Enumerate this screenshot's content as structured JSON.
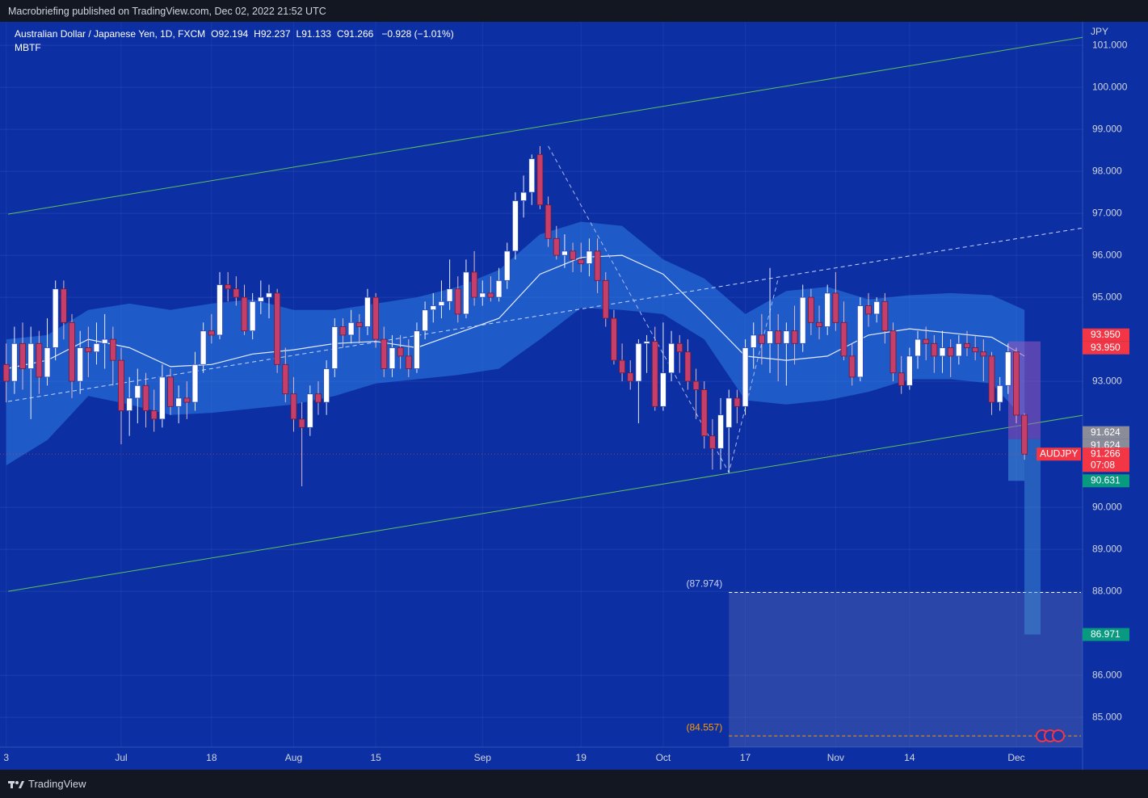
{
  "header": {
    "published": "Macrobriefing published on TradingView.com, Dec 02, 2022 21:52 UTC"
  },
  "footer": {
    "brand": "TradingView"
  },
  "chart_data": {
    "type": "candlestick",
    "symbol_title": "Australian Dollar / Japanese Yen, 1D, FXCM",
    "ohlc_legend": [
      {
        "key": "O",
        "value": "92.194"
      },
      {
        "key": "H",
        "value": "92.237"
      },
      {
        "key": "L",
        "value": "91.133"
      },
      {
        "key": "C",
        "value": "91.266"
      }
    ],
    "change": "−0.928 (−1.01%)",
    "indicator": "MBTF",
    "y_axis_unit": "JPY",
    "symbol": "AUDJPY",
    "countdown": "07:08",
    "up_color": "#ffffff",
    "down_color": "#c53f6a",
    "categories": [
      "3",
      null,
      null,
      null,
      null,
      null,
      null,
      null,
      null,
      null,
      null,
      null,
      null,
      null,
      "Jul",
      null,
      null,
      null,
      null,
      null,
      null,
      null,
      null,
      null,
      null,
      "18",
      null,
      null,
      null,
      null,
      null,
      null,
      null,
      null,
      null,
      "Aug",
      null,
      null,
      null,
      null,
      null,
      null,
      null,
      null,
      null,
      "15",
      null,
      null,
      null,
      null,
      null,
      null,
      null,
      null,
      null,
      null,
      null,
      null,
      "Sep",
      null,
      null,
      null,
      null,
      null,
      null,
      null,
      null,
      null,
      null,
      null,
      "19",
      null,
      null,
      null,
      null,
      null,
      null,
      null,
      null,
      null,
      "Oct",
      null,
      null,
      null,
      null,
      null,
      null,
      null,
      null,
      null,
      "17",
      null,
      null,
      null,
      null,
      null,
      null,
      null,
      null,
      null,
      null,
      "Nov",
      null,
      null,
      null,
      null,
      null,
      null,
      null,
      null,
      "14",
      null,
      null,
      null,
      null,
      null,
      null,
      null,
      null,
      null,
      null,
      null,
      null,
      "Dec",
      null
    ],
    "candles": [
      [
        93.4,
        93.9,
        92.5,
        93.0
      ],
      [
        93.0,
        94.3,
        92.7,
        93.9
      ],
      [
        93.9,
        94.4,
        92.8,
        93.3
      ],
      [
        93.3,
        94.3,
        92.1,
        93.9
      ],
      [
        93.9,
        94.2,
        92.7,
        93.1
      ],
      [
        93.1,
        94.5,
        92.9,
        93.8
      ],
      [
        93.8,
        95.4,
        93.5,
        95.2
      ],
      [
        95.2,
        95.4,
        94.0,
        94.4
      ],
      [
        94.4,
        94.6,
        92.6,
        93.0
      ],
      [
        93.0,
        94.2,
        92.7,
        93.8
      ],
      [
        93.8,
        94.3,
        93.1,
        93.7
      ],
      [
        93.7,
        94.4,
        93.4,
        93.9
      ],
      [
        93.9,
        94.6,
        93.3,
        94.0
      ],
      [
        94.0,
        94.3,
        92.9,
        93.5
      ],
      [
        93.5,
        93.8,
        91.5,
        92.3
      ],
      [
        92.3,
        93.1,
        91.7,
        92.6
      ],
      [
        92.6,
        93.3,
        92.0,
        92.9
      ],
      [
        92.9,
        93.2,
        91.9,
        92.3
      ],
      [
        92.3,
        92.8,
        91.8,
        92.1
      ],
      [
        92.1,
        93.4,
        91.9,
        93.1
      ],
      [
        93.1,
        93.3,
        92.2,
        92.4
      ],
      [
        92.4,
        92.9,
        92.0,
        92.6
      ],
      [
        92.6,
        93.0,
        92.1,
        92.5
      ],
      [
        92.5,
        93.7,
        92.3,
        93.4
      ],
      [
        93.4,
        94.4,
        93.2,
        94.2
      ],
      [
        94.2,
        94.6,
        93.9,
        94.1
      ],
      [
        94.1,
        95.6,
        94.0,
        95.3
      ],
      [
        95.3,
        95.6,
        94.9,
        95.2
      ],
      [
        95.2,
        95.5,
        94.8,
        95.0
      ],
      [
        95.0,
        95.3,
        94.1,
        94.2
      ],
      [
        94.2,
        95.1,
        94.0,
        94.9
      ],
      [
        94.9,
        95.4,
        94.6,
        95.0
      ],
      [
        95.0,
        95.3,
        94.5,
        95.1
      ],
      [
        95.1,
        95.2,
        93.2,
        93.4
      ],
      [
        93.4,
        93.8,
        92.5,
        92.7
      ],
      [
        92.7,
        93.1,
        91.8,
        92.1
      ],
      [
        92.1,
        92.5,
        90.5,
        91.9
      ],
      [
        91.9,
        92.9,
        91.7,
        92.7
      ],
      [
        92.7,
        93.0,
        92.2,
        92.5
      ],
      [
        92.5,
        93.5,
        92.2,
        93.3
      ],
      [
        93.3,
        94.5,
        93.1,
        94.3
      ],
      [
        94.3,
        94.5,
        93.8,
        94.1
      ],
      [
        94.1,
        94.7,
        93.9,
        94.4
      ],
      [
        94.4,
        94.6,
        93.9,
        94.3
      ],
      [
        94.3,
        95.2,
        94.1,
        95.0
      ],
      [
        95.0,
        95.1,
        93.8,
        94.0
      ],
      [
        94.0,
        94.3,
        93.1,
        93.3
      ],
      [
        93.3,
        94.1,
        93.1,
        93.8
      ],
      [
        93.8,
        94.1,
        93.3,
        93.6
      ],
      [
        93.6,
        94.0,
        93.1,
        93.3
      ],
      [
        93.3,
        94.4,
        93.2,
        94.2
      ],
      [
        94.2,
        94.9,
        94.0,
        94.7
      ],
      [
        94.7,
        95.1,
        94.4,
        94.8
      ],
      [
        94.8,
        95.4,
        94.5,
        94.9
      ],
      [
        94.9,
        95.9,
        94.7,
        95.2
      ],
      [
        95.2,
        95.5,
        94.4,
        94.6
      ],
      [
        94.6,
        95.9,
        94.5,
        95.6
      ],
      [
        95.6,
        96.1,
        94.8,
        95.0
      ],
      [
        95.0,
        95.4,
        94.8,
        95.1
      ],
      [
        95.1,
        95.5,
        94.9,
        95.0
      ],
      [
        95.0,
        95.7,
        94.9,
        95.4
      ],
      [
        95.4,
        96.3,
        95.2,
        96.1
      ],
      [
        96.1,
        97.5,
        95.9,
        97.3
      ],
      [
        97.3,
        97.9,
        96.9,
        97.5
      ],
      [
        97.5,
        98.4,
        97.2,
        98.3
      ],
      [
        98.4,
        98.6,
        97.1,
        97.2
      ],
      [
        97.2,
        97.4,
        96.2,
        96.4
      ],
      [
        96.4,
        96.7,
        95.9,
        96.0
      ],
      [
        96.0,
        96.5,
        95.7,
        96.1
      ],
      [
        96.1,
        96.3,
        95.6,
        95.9
      ],
      [
        95.9,
        96.3,
        95.6,
        95.8
      ],
      [
        95.8,
        96.4,
        95.5,
        96.1
      ],
      [
        96.1,
        96.4,
        95.1,
        95.4
      ],
      [
        95.4,
        95.6,
        94.3,
        94.5
      ],
      [
        94.5,
        94.7,
        93.4,
        93.5
      ],
      [
        93.5,
        93.9,
        93.0,
        93.2
      ],
      [
        93.2,
        93.5,
        92.8,
        93.0
      ],
      [
        93.0,
        94.0,
        92.0,
        93.9
      ],
      [
        93.9,
        94.1,
        93.2,
        93.95
      ],
      [
        93.95,
        94.3,
        92.3,
        92.4
      ],
      [
        92.4,
        94.4,
        92.3,
        93.2
      ],
      [
        93.2,
        94.2,
        93.0,
        93.9
      ],
      [
        93.9,
        94.1,
        93.2,
        93.7
      ],
      [
        93.7,
        94.0,
        92.8,
        93.0
      ],
      [
        93.0,
        93.3,
        92.1,
        92.8
      ],
      [
        92.8,
        93.0,
        91.4,
        91.7
      ],
      [
        91.7,
        92.1,
        90.9,
        91.4
      ],
      [
        91.4,
        92.6,
        90.9,
        92.2
      ],
      [
        91.9,
        92.8,
        90.83,
        92.6
      ],
      [
        92.6,
        92.8,
        92.0,
        92.4
      ],
      [
        92.4,
        94.0,
        92.2,
        93.8
      ],
      [
        93.8,
        94.4,
        93.3,
        94.1
      ],
      [
        94.1,
        94.6,
        93.4,
        93.9
      ],
      [
        93.9,
        95.7,
        93.2,
        94.2
      ],
      [
        94.2,
        94.6,
        93.0,
        93.9
      ],
      [
        93.9,
        94.4,
        92.9,
        94.2
      ],
      [
        94.2,
        94.8,
        93.4,
        93.9
      ],
      [
        93.9,
        95.3,
        93.7,
        95.0
      ],
      [
        95.0,
        95.2,
        94.1,
        94.4
      ],
      [
        94.4,
        94.8,
        94.0,
        94.3
      ],
      [
        94.3,
        95.3,
        94.1,
        95.1
      ],
      [
        95.1,
        95.6,
        94.2,
        94.4
      ],
      [
        94.4,
        94.9,
        93.5,
        93.6
      ],
      [
        93.6,
        93.9,
        92.9,
        93.1
      ],
      [
        93.1,
        95.0,
        93.0,
        94.8
      ],
      [
        94.8,
        95.1,
        94.3,
        94.6
      ],
      [
        94.6,
        95.0,
        94.4,
        94.9
      ],
      [
        94.9,
        95.1,
        93.9,
        94.2
      ],
      [
        94.2,
        94.4,
        93.0,
        93.2
      ],
      [
        93.2,
        93.6,
        92.7,
        92.9
      ],
      [
        92.9,
        93.8,
        92.8,
        93.6
      ],
      [
        93.6,
        94.2,
        93.3,
        94.0
      ],
      [
        94.0,
        94.3,
        93.5,
        93.9
      ],
      [
        93.9,
        94.1,
        93.2,
        93.6
      ],
      [
        93.6,
        94.2,
        93.2,
        93.8
      ],
      [
        93.8,
        94.0,
        93.1,
        93.6
      ],
      [
        93.6,
        94.1,
        93.4,
        93.9
      ],
      [
        93.9,
        94.2,
        93.6,
        93.8
      ],
      [
        93.8,
        94.1,
        93.5,
        93.7
      ],
      [
        93.7,
        94.0,
        93.0,
        93.6
      ],
      [
        93.6,
        93.7,
        92.2,
        92.5
      ],
      [
        92.5,
        93.1,
        92.3,
        92.9
      ],
      [
        92.9,
        93.9,
        92.7,
        93.7
      ],
      [
        93.7,
        93.8,
        92.0,
        92.194
      ],
      [
        92.194,
        92.237,
        91.133,
        91.266
      ]
    ],
    "ylim": [
      84.29,
      101.56
    ],
    "yticks": [
      {
        "value": 85,
        "label": "85.000"
      },
      {
        "value": 86,
        "label": "86.000"
      },
      {
        "value": 88,
        "label": "88.000"
      },
      {
        "value": 89,
        "label": "89.000"
      },
      {
        "value": 90,
        "label": "90.000"
      },
      {
        "value": 93,
        "label": "93.000"
      },
      {
        "value": 95,
        "label": "95.000"
      },
      {
        "value": 96,
        "label": "96.000"
      },
      {
        "value": 97,
        "label": "97.000"
      },
      {
        "value": 98,
        "label": "98.000"
      },
      {
        "value": 99,
        "label": "99.000"
      },
      {
        "value": 100,
        "label": "100.000"
      },
      {
        "value": 101,
        "label": "101.000"
      }
    ],
    "grid": true,
    "band": {
      "color": "#2f7fe6",
      "x": [
        0,
        5,
        10,
        15,
        20,
        25,
        30,
        35,
        40,
        45,
        50,
        55,
        60,
        65,
        70,
        75,
        80,
        85,
        90,
        95,
        100,
        105,
        110,
        115,
        120,
        124
      ],
      "upper": [
        94.0,
        94.1,
        94.7,
        94.85,
        94.7,
        94.85,
        94.95,
        94.7,
        94.7,
        94.85,
        95.0,
        95.25,
        95.65,
        96.5,
        96.8,
        96.7,
        95.9,
        95.45,
        94.6,
        95.15,
        95.25,
        94.95,
        95.05,
        95.1,
        95.05,
        94.7
      ],
      "middle": [
        93.3,
        93.5,
        94.0,
        93.8,
        93.35,
        93.4,
        93.65,
        93.75,
        93.9,
        93.95,
        93.8,
        94.15,
        94.5,
        95.55,
        95.95,
        96.0,
        95.55,
        94.6,
        93.6,
        93.5,
        93.6,
        94.1,
        94.25,
        94.15,
        94.05,
        93.6
      ],
      "lower": [
        91.0,
        91.6,
        92.65,
        92.45,
        92.2,
        92.25,
        92.35,
        92.45,
        92.65,
        92.95,
        93.05,
        93.15,
        93.3,
        94.0,
        94.75,
        94.7,
        94.6,
        94.0,
        92.55,
        92.45,
        92.55,
        92.75,
        93.05,
        93.05,
        92.95,
        92.1
      ]
    },
    "trendlines": [
      {
        "color": "#5fbf5f",
        "dashed": false,
        "x": [
          0.23,
          131.1
        ],
        "values": [
          96.98,
          101.19
        ]
      },
      {
        "color": "#5fbf5f",
        "dashed": false,
        "x": [
          0.23,
          131.1
        ],
        "values": [
          88.0,
          92.19
        ]
      },
      {
        "color": "#c9d4ff",
        "dashed": true,
        "x": [
          0.23,
          131.1
        ],
        "values": [
          92.52,
          96.65
        ]
      },
      {
        "color": "#a9b7f0",
        "dashed": true,
        "x": [
          66,
          88,
          94
        ],
        "values": [
          98.6,
          90.83,
          95.44
        ]
      }
    ],
    "price_labels": [
      {
        "value": 93.95,
        "label": "93.950",
        "color": "#f23645"
      },
      {
        "value": 93.95,
        "label": "93.950",
        "color": "#f23645"
      },
      {
        "value": 91.624,
        "label": "91.624",
        "color": "#8a8d99"
      },
      {
        "value": 91.624,
        "label": "91.624",
        "color": "#8a8d99"
      },
      {
        "value": 91.266,
        "label": "91.266",
        "color": "#f23645"
      },
      {
        "value": 90.631,
        "label": "90.631",
        "color": "#089981"
      },
      {
        "value": 86.971,
        "label": "86.971",
        "color": "#089981"
      }
    ],
    "levels": [
      {
        "value": 87.974,
        "label": "(87.974)",
        "color": "#ffffff"
      },
      {
        "value": 84.557,
        "label": "(84.557)",
        "color": "#ff9800"
      }
    ]
  }
}
